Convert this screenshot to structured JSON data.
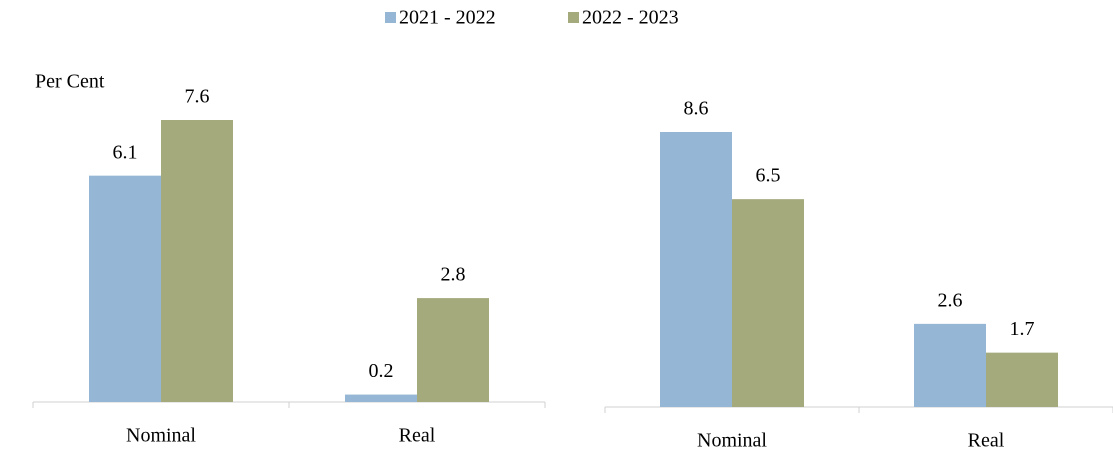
{
  "chart_data": [
    {
      "type": "bar",
      "y_label": "Per Cent",
      "categories": [
        "Nominal",
        "Real"
      ],
      "series": [
        {
          "name": "2021 - 2022",
          "color": "#95b6d4",
          "label_color": "#595959",
          "values": [
            6.1,
            0.2
          ]
        },
        {
          "name": "2022 - 2023",
          "color": "#a4aa7c",
          "label_color": "#000000",
          "values": [
            7.6,
            2.8
          ]
        }
      ]
    },
    {
      "type": "bar",
      "categories": [
        "Nominal",
        "Real"
      ],
      "series": [
        {
          "color": "#95b6d4",
          "label_color": "#595959",
          "values": [
            8.6,
            2.6
          ]
        },
        {
          "color": "#a4aa7c",
          "label_color": "#000000",
          "values": [
            6.5,
            1.7
          ]
        }
      ]
    }
  ]
}
